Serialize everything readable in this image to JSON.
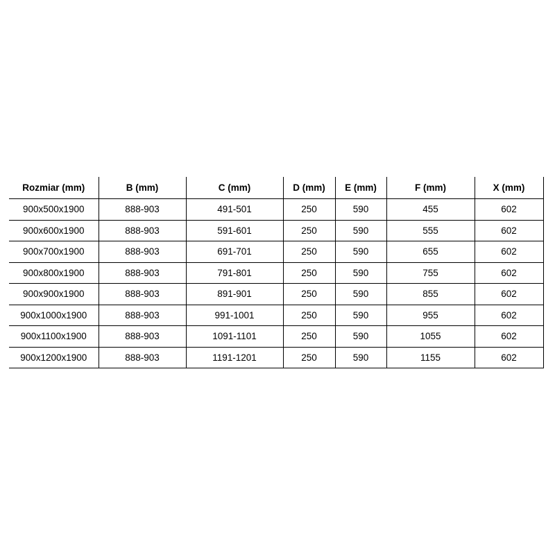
{
  "page": {
    "background": "#ffffff"
  },
  "table": {
    "name": "dimensions-spec-table",
    "border_color": "#000000",
    "text_color": "#000000",
    "columns": [
      "Rozmiar (mm)",
      "B (mm)",
      "C (mm)",
      "D (mm)",
      "E (mm)",
      "F (mm)",
      "X (mm)"
    ],
    "rows": [
      [
        "900x500x1900",
        "888-903",
        "491-501",
        "250",
        "590",
        "455",
        "602"
      ],
      [
        "900x600x1900",
        "888-903",
        "591-601",
        "250",
        "590",
        "555",
        "602"
      ],
      [
        "900x700x1900",
        "888-903",
        "691-701",
        "250",
        "590",
        "655",
        "602"
      ],
      [
        "900x800x1900",
        "888-903",
        "791-801",
        "250",
        "590",
        "755",
        "602"
      ],
      [
        "900x900x1900",
        "888-903",
        "891-901",
        "250",
        "590",
        "855",
        "602"
      ],
      [
        "900x1000x1900",
        "888-903",
        "991-1001",
        "250",
        "590",
        "955",
        "602"
      ],
      [
        "900x1100x1900",
        "888-903",
        "1091-1101",
        "250",
        "590",
        "1055",
        "602"
      ],
      [
        "900x1200x1900",
        "888-903",
        "1191-1201",
        "250",
        "590",
        "1155",
        "602"
      ]
    ]
  }
}
